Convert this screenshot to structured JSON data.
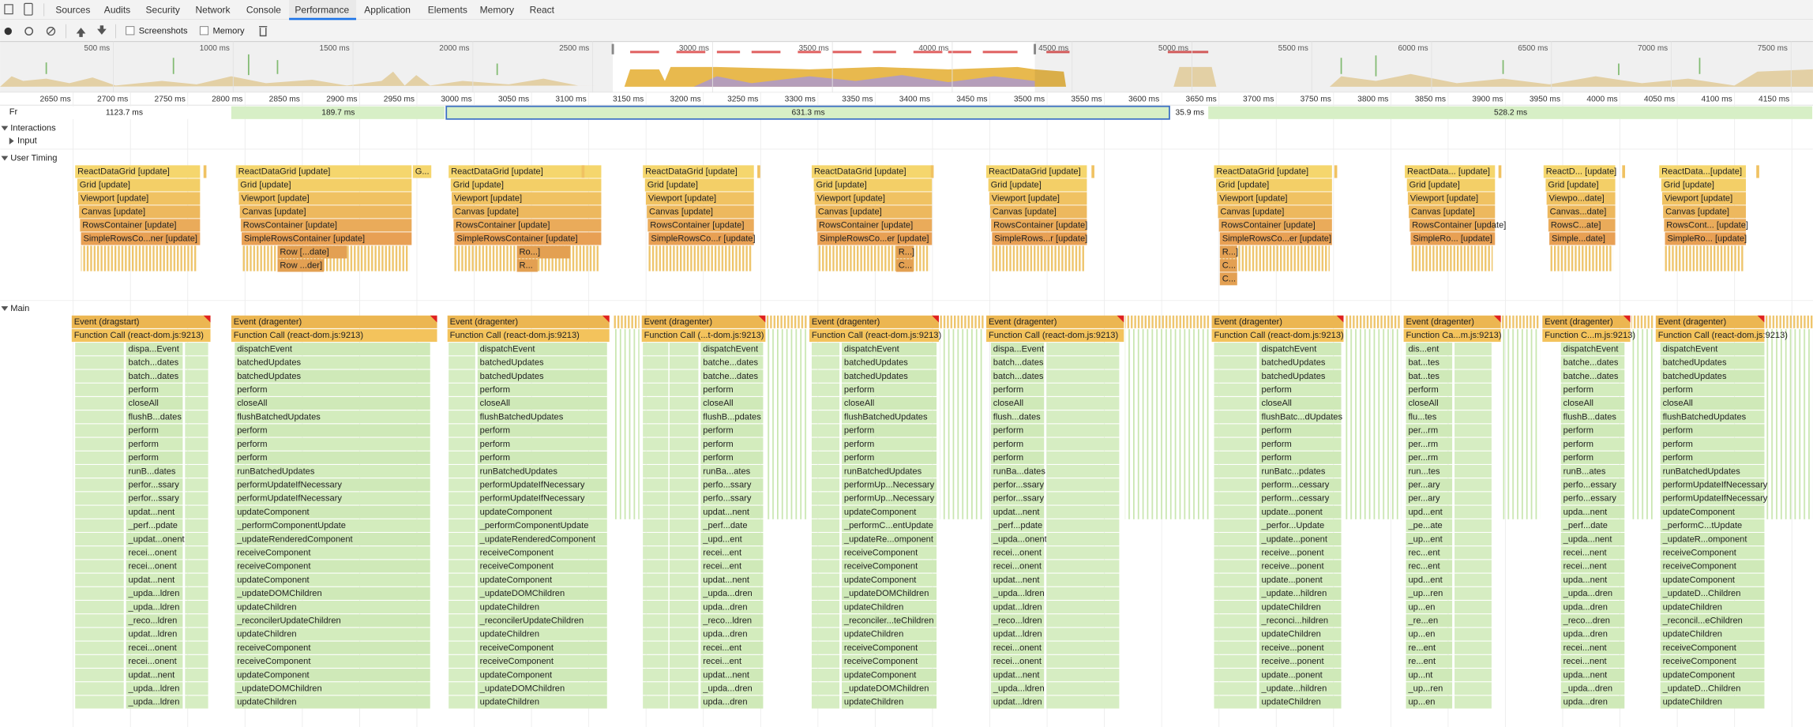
{
  "tabs": [
    "Sources",
    "Audits",
    "Security",
    "Network",
    "Console",
    "Performance",
    "Application",
    "Elements",
    "Memory",
    "React"
  ],
  "selected_tab": 5,
  "toolbar": {
    "checkboxes": [
      "Screenshots",
      "Memory"
    ]
  },
  "overview_ticks": [
    {
      "value": 500,
      "label": "500 ms"
    },
    {
      "value": 1000,
      "label": "1000 ms"
    },
    {
      "value": 1500,
      "label": "1500 ms"
    },
    {
      "value": 2000,
      "label": "2000 ms"
    },
    {
      "value": 2500,
      "label": "2500 ms"
    },
    {
      "value": 3000,
      "label": "3000 ms"
    },
    {
      "value": 3500,
      "label": "3500 ms"
    },
    {
      "value": 4000,
      "label": "4000 ms"
    },
    {
      "value": 4500,
      "label": "4500 ms"
    },
    {
      "value": 5000,
      "label": "5000 ms"
    },
    {
      "value": 5500,
      "label": "5500 ms"
    },
    {
      "value": 6000,
      "label": "6000 ms"
    },
    {
      "value": 6500,
      "label": "6500 ms"
    },
    {
      "value": 7000,
      "label": "7000 ms"
    },
    {
      "value": 7500,
      "label": "7500 ms"
    }
  ],
  "ruler_ticks": [
    {
      "value": 2650,
      "label": "2650 ms"
    },
    {
      "value": 2700,
      "label": "2700 ms"
    },
    {
      "value": 2750,
      "label": "2750 ms"
    },
    {
      "value": 2800,
      "label": "2800 ms"
    },
    {
      "value": 2850,
      "label": "2850 ms"
    },
    {
      "value": 2900,
      "label": "2900 ms"
    },
    {
      "value": 2950,
      "label": "2950 ms"
    },
    {
      "value": 3000,
      "label": "3000 ms"
    },
    {
      "value": 3050,
      "label": "3050 ms"
    },
    {
      "value": 3100,
      "label": "3100 ms"
    },
    {
      "value": 3150,
      "label": "3150 ms"
    },
    {
      "value": 3200,
      "label": "3200 ms"
    },
    {
      "value": 3250,
      "label": "3250 ms"
    },
    {
      "value": 3300,
      "label": "3300 ms"
    },
    {
      "value": 3350,
      "label": "3350 ms"
    },
    {
      "value": 3400,
      "label": "3400 ms"
    },
    {
      "value": 3450,
      "label": "3450 ms"
    },
    {
      "value": 3500,
      "label": "3500 ms"
    },
    {
      "value": 3550,
      "label": "3550 ms"
    },
    {
      "value": 3600,
      "label": "3600 ms"
    },
    {
      "value": 3650,
      "label": "3650 ms"
    },
    {
      "value": 3700,
      "label": "3700 ms"
    },
    {
      "value": 3750,
      "label": "3750 ms"
    },
    {
      "value": 3800,
      "label": "3800 ms"
    },
    {
      "value": 3850,
      "label": "3850 ms"
    },
    {
      "value": 3900,
      "label": "3900 ms"
    },
    {
      "value": 3950,
      "label": "3950 ms"
    },
    {
      "value": 4000,
      "label": "4000 ms"
    },
    {
      "value": 4050,
      "label": "4050 ms"
    },
    {
      "value": 4100,
      "label": "4100 ms"
    },
    {
      "value": 4150,
      "label": "4150 ms"
    }
  ],
  "frames": {
    "label": "Frames",
    "durations": [
      "1123.7 ms",
      "189.7 ms",
      "631.3 ms",
      "35.9 ms",
      "528.2 ms"
    ]
  },
  "tracks": {
    "interactions": "Interactions",
    "input": "Input",
    "user_timing": "User Timing",
    "main": "Main"
  },
  "user_timing": [
    {
      "labels": [
        "ReactDataGrid [update]",
        "Grid [update]",
        "Viewport [update]",
        "Canvas [update]",
        "RowsContainer [update]",
        "SimpleRowsCo...ner [update]"
      ],
      "children": []
    },
    {
      "labels": [
        "ReactDataGrid [update]",
        "Grid [update]",
        "Viewport [update]",
        "Canvas [update]",
        "RowsContainer [update]",
        "SimpleRowsContainer [update]"
      ],
      "children": [
        "Row [...date]",
        "Row ...der]"
      ]
    },
    {
      "labels": [
        "ReactDataGrid [update]",
        "Grid [update]",
        "Viewport [update]",
        "Canvas [update]",
        "RowsContainer [update]",
        "SimpleRowsContainer [update]"
      ],
      "children": [
        "Ro...]",
        "R..."
      ]
    },
    {
      "labels": [
        "ReactDataGrid [update]",
        "Grid [update]",
        "Viewport [update]",
        "Canvas [update]",
        "RowsContainer [update]",
        "SimpleRowsCo...r [update]"
      ],
      "children": []
    },
    {
      "labels": [
        "ReactDataGrid [update]",
        "Grid [update]",
        "Viewport [update]",
        "Canvas [update]",
        "RowsContainer [update]",
        "SimpleRowsCo...er [update]"
      ],
      "children": [
        "R...]",
        "C..."
      ]
    },
    {
      "labels": [
        "ReactDataGrid [update]",
        "Grid [update]",
        "Viewport [update]",
        "Canvas [update]",
        "RowsContainer [update]",
        "SimpleRows...r [update]"
      ],
      "children": []
    },
    {
      "labels": [
        "ReactDataGrid [update]",
        "Grid [update]",
        "Viewport [update]",
        "Canvas [update]",
        "RowsContainer [update]",
        "SimpleRowsCo...er [update]"
      ],
      "children": [
        "R...]",
        "C...",
        "C..."
      ]
    },
    {
      "labels": [
        "ReactData... [update]",
        "Grid [update]",
        "Viewport [update]",
        "Canvas [update]",
        "RowsContainer [update]",
        "SimpleRo... [update]"
      ],
      "children": []
    },
    {
      "labels": [
        "ReactD... [update]",
        "Grid [update]",
        "Viewpo...date]",
        "Canvas...date]",
        "RowsC...ate]",
        "Simple...date]"
      ],
      "children": []
    },
    {
      "labels": [
        "ReactData...[update]",
        "Grid [update]",
        "Viewport [update]",
        "Canvas [update]",
        "RowsCont... [update]",
        "SimpleRo... [update]"
      ],
      "children": []
    },
    {
      "labels": [
        "G..."
      ],
      "children": []
    }
  ],
  "main": [
    {
      "event": "Event (dragstart)",
      "call": "Function Call (react-dom.js:9213)",
      "stack": [
        "dispa...Event",
        "batch...dates",
        "batch...dates",
        "perform",
        "closeAll",
        "flushB...dates",
        "perform",
        "perform",
        "perform",
        "runB...dates",
        "perfor...ssary",
        "perfor...ssary",
        "updat...nent",
        "_perf...pdate",
        "_updat...onent",
        "recei...onent",
        "recei...onent",
        "updat...nent",
        "_upda...ldren",
        "_upda...ldren",
        "_reco...ldren",
        "updat...ldren",
        "recei...onent",
        "recei...onent",
        "updat...nent",
        "_upda...ldren",
        "_upda...ldren"
      ]
    },
    {
      "event": "Event (dragenter)",
      "call": "Function Call (react-dom.js:9213)",
      "stack": [
        "dispatchEvent",
        "batchedUpdates",
        "batchedUpdates",
        "perform",
        "closeAll",
        "flushBatchedUpdates",
        "perform",
        "perform",
        "perform",
        "runBatchedUpdates",
        "performUpdateIfNecessary",
        "performUpdateIfNecessary",
        "updateComponent",
        "_performComponentUpdate",
        "_updateRenderedComponent",
        "receiveComponent",
        "receiveComponent",
        "updateComponent",
        "_updateDOMChildren",
        "updateChildren",
        "_reconcilerUpdateChildren",
        "updateChildren",
        "receiveComponent",
        "receiveComponent",
        "updateComponent",
        "_updateDOMChildren",
        "updateChildren"
      ]
    },
    {
      "event": "Event (dragenter)",
      "call": "Function Call (react-dom.js:9213)",
      "stack": [
        "dispatchEvent",
        "batchedUpdates",
        "batchedUpdates",
        "perform",
        "closeAll",
        "flushBatchedUpdates",
        "perform",
        "perform",
        "perform",
        "runBatchedUpdates",
        "performUpdateIfNecessary",
        "performUpdateIfNecessary",
        "updateComponent",
        "_performComponentUpdate",
        "_updateRenderedComponent",
        "receiveComponent",
        "receiveComponent",
        "updateComponent",
        "_updateDOMChildren",
        "updateChildren",
        "_reconcilerUpdateChildren",
        "updateChildren",
        "receiveComponent",
        "receiveComponent",
        "updateComponent",
        "_updateDOMChildren",
        "updateChildren"
      ]
    },
    {
      "event": "Event (dragenter)",
      "call": "Function Call (...t-dom.js:9213)",
      "stack": [
        "dispatchEvent",
        "batche...dates",
        "batche...dates",
        "perform",
        "closeAll",
        "flushB...pdates",
        "perform",
        "perform",
        "perform",
        "runBa...ates",
        "perfo...ssary",
        "perfo...ssary",
        "updat...nent",
        "_perf...date",
        "_upd...ent",
        "recei...ent",
        "recei...ent",
        "updat...nent",
        "_upda...dren",
        "upda...dren",
        "_reco...ldren",
        "upda...dren",
        "recei...ent",
        "recei...ent",
        "updat...nent",
        "_upda...dren",
        "upda...dren"
      ]
    },
    {
      "event": "Event (dragenter)",
      "call": "Function Call (react-dom.js:9213)",
      "stack": [
        "dispatchEvent",
        "batchedUpdates",
        "batchedUpdates",
        "perform",
        "closeAll",
        "flushBatchedUpdates",
        "perform",
        "perform",
        "perform",
        "runBatchedUpdates",
        "performUp...Necessary",
        "performUp...Necessary",
        "updateComponent",
        "_performC...entUpdate",
        "_updateRe...omponent",
        "receiveComponent",
        "receiveComponent",
        "updateComponent",
        "_updateDOMChildren",
        "updateChildren",
        "_reconciler...teChildren",
        "updateChildren",
        "receiveComponent",
        "receiveComponent",
        "updateComponent",
        "_updateDOMChildren",
        "updateChildren"
      ]
    },
    {
      "event": "Event (dragenter)",
      "call": "Function Call (react-dom.js:9213)",
      "stack": [
        "dispa...Event",
        "batch...dates",
        "batch...dates",
        "perform",
        "closeAll",
        "flush...dates",
        "perform",
        "perform",
        "perform",
        "runBa...dates",
        "perfor...ssary",
        "perfor...ssary",
        "updat...nent",
        "_perf...pdate",
        "_upda...onent",
        "recei...onent",
        "recei...onent",
        "updat...nent",
        "_upda...ldren",
        "updat...ldren",
        "_reco...ldren",
        "updat...ldren",
        "recei...onent",
        "recei...onent",
        "updat...nent",
        "_upda...ldren",
        "updat...ldren"
      ]
    },
    {
      "event": "Event (dragenter)",
      "call": "Function Call (react-dom.js:9213)",
      "stack": [
        "dispatchEvent",
        "batchedUpdates",
        "batchedUpdates",
        "perform",
        "closeAll",
        "flushBatc...dUpdates",
        "perform",
        "perform",
        "perform",
        "runBatc...pdates",
        "perform...cessary",
        "perform...cessary",
        "update...ponent",
        "_perfor...Update",
        "_update...ponent",
        "receive...ponent",
        "receive...ponent",
        "update...ponent",
        "_update...hildren",
        "updateChildren",
        "_reconci...hildren",
        "updateChildren",
        "receive...ponent",
        "receive...ponent",
        "update...ponent",
        "_update...hildren",
        "updateChildren"
      ]
    },
    {
      "event": "Event (dragenter)",
      "call": "Function Ca...m.js:9213)",
      "stack": [
        "dis...ent",
        "bat...tes",
        "bat...tes",
        "perform",
        "closeAll",
        "flu...tes",
        "per...rm",
        "per...rm",
        "per...rm",
        "run...tes",
        "per...ary",
        "per...ary",
        "upd...ent",
        "_pe...ate",
        "_up...ent",
        "rec...ent",
        "rec...ent",
        "upd...ent",
        "_up...ren",
        "up...en",
        "_re...en",
        "up...en",
        "re...ent",
        "re...ent",
        "up...nt",
        "_up...ren",
        "up...en"
      ]
    },
    {
      "event": "Event (dragenter)",
      "call": "Function C...m.js:9213)",
      "stack": [
        "dispatchEvent",
        "batche...dates",
        "batche...dates",
        "perform",
        "closeAll",
        "flushB...dates",
        "perform",
        "perform",
        "perform",
        "runB...ates",
        "perfo...essary",
        "perfo...essary",
        "upda...nent",
        "_perf...date",
        "_upda...nent",
        "recei...nent",
        "recei...nent",
        "upda...nent",
        "_upda...dren",
        "upda...dren",
        "_reco...dren",
        "upda...dren",
        "recei...nent",
        "recei...nent",
        "upda...nent",
        "_upda...dren",
        "upda...dren"
      ]
    },
    {
      "event": "Event (dragenter)",
      "call": "Function Call (react-dom.js:9213)",
      "stack": [
        "dispatchEvent",
        "batchedUpdates",
        "batchedUpdates",
        "perform",
        "closeAll",
        "flushBatchedUpdates",
        "perform",
        "perform",
        "perform",
        "runBatchedUpdates",
        "performUpdateIfNecessary",
        "performUpdateIfNecessary",
        "updateComponent",
        "_performC...tUpdate",
        "_updateR...omponent",
        "receiveComponent",
        "receiveComponent",
        "updateComponent",
        "_updateD...Children",
        "updateChildren",
        "_reconcil...eChildren",
        "updateChildren",
        "receiveComponent",
        "receiveComponent",
        "updateComponent",
        "_updateD...Children",
        "updateChildren"
      ]
    }
  ]
}
